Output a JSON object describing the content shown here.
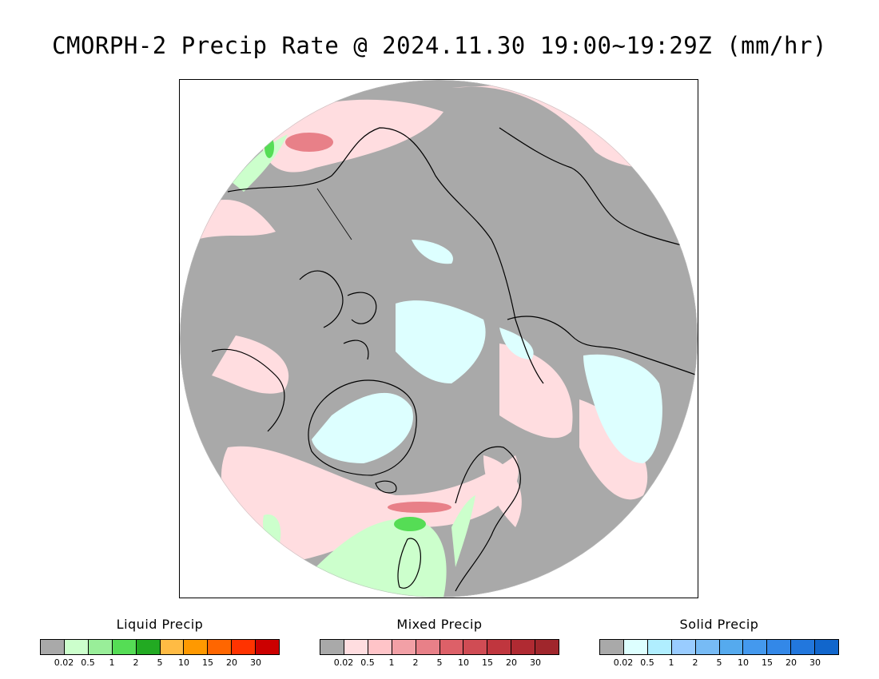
{
  "title": "CMORPH-2 Precip Rate @ 2024.11.30 19:00~19:29Z (mm/hr)",
  "map": {
    "projection": "north-polar-stereographic",
    "background_color": "#a9a9a9",
    "coastline_color": "#000000"
  },
  "legends": [
    {
      "title": "Liquid Precip",
      "colors": [
        "#a9a9a9",
        "#ccffcc",
        "#99ee99",
        "#55dd55",
        "#22aa22",
        "#ffbb44",
        "#ff9900",
        "#ff6600",
        "#ff3300",
        "#cc0000"
      ],
      "ticks": [
        "0.02",
        "0.5",
        "1",
        "2",
        "5",
        "10",
        "15",
        "20",
        "30"
      ]
    },
    {
      "title": "Mixed Precip",
      "colors": [
        "#a9a9a9",
        "#ffdde0",
        "#ffc4c8",
        "#f2a0a6",
        "#e88088",
        "#dd6068",
        "#d04c54",
        "#c0363e",
        "#b02a32",
        "#a0262c"
      ],
      "ticks": [
        "0.02",
        "0.5",
        "1",
        "2",
        "5",
        "10",
        "15",
        "20",
        "30"
      ]
    },
    {
      "title": "Solid Precip",
      "colors": [
        "#a9a9a9",
        "#ddffff",
        "#b0eeff",
        "#99ccff",
        "#77bbf5",
        "#55aaee",
        "#4499ee",
        "#3388e8",
        "#2277dd",
        "#1166cc"
      ],
      "ticks": [
        "0.02",
        "0.5",
        "1",
        "2",
        "5",
        "10",
        "15",
        "20",
        "30"
      ]
    }
  ]
}
